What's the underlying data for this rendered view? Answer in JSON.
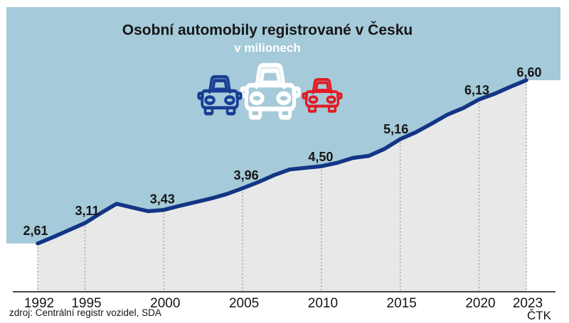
{
  "title": "Osobní automobily registrované v Česku",
  "subtitle": "v milionech",
  "source": "zdroj: Centrální registr vozidel, SDA",
  "agency": "ČTK",
  "colors": {
    "background": "#ffffff",
    "panel_blue": "#a5cad9",
    "area_gray": "#e8e8e8",
    "line_navy": "#123585",
    "car_blue": "#173d94",
    "car_white": "#ffffff",
    "car_red": "#e21b23",
    "grid_dotted": "#a3a3a3",
    "axis": "#2f2f2f",
    "label_text": "#151515"
  },
  "icons": {
    "cars": [
      {
        "name": "car-front-outline-white",
        "color": "#ffffff"
      },
      {
        "name": "car-front-outline-blue",
        "color": "#173d94"
      },
      {
        "name": "car-front-outline-red",
        "color": "#e21b23"
      }
    ]
  },
  "chart_data": {
    "type": "area",
    "title": "Osobní automobily registrované v Česku",
    "subtitle": "v milionech",
    "unit_note": "values in millions of cars",
    "x_range": [
      1992,
      2023
    ],
    "x_ticks": [
      1992,
      1995,
      2000,
      2005,
      2010,
      2015,
      2020,
      2023
    ],
    "y_axis_visible": false,
    "grid": "dotted vertical lines at labeled years",
    "legend_position": "none",
    "labeled_points": [
      {
        "year": 1992,
        "value": 2.61,
        "label": "2,61"
      },
      {
        "year": 1995,
        "value": 3.11,
        "label": "3,11"
      },
      {
        "year": 2000,
        "value": 3.43,
        "label": "3,43"
      },
      {
        "year": 2005,
        "value": 3.96,
        "label": "3,96"
      },
      {
        "year": 2010,
        "value": 4.5,
        "label": "4,50"
      },
      {
        "year": 2015,
        "value": 5.16,
        "label": "5,16"
      },
      {
        "year": 2020,
        "value": 6.13,
        "label": "6,13"
      },
      {
        "year": 2023,
        "value": 6.6,
        "label": "6,60"
      }
    ],
    "line_points": [
      [
        1992,
        2.61
      ],
      [
        1993,
        2.77
      ],
      [
        1994,
        2.94
      ],
      [
        1995,
        3.11
      ],
      [
        1996,
        3.35
      ],
      [
        1997,
        3.58
      ],
      [
        1998,
        3.49
      ],
      [
        1999,
        3.4
      ],
      [
        2000,
        3.43
      ],
      [
        2001,
        3.53
      ],
      [
        2002,
        3.62
      ],
      [
        2003,
        3.71
      ],
      [
        2004,
        3.82
      ],
      [
        2005,
        3.96
      ],
      [
        2006,
        4.11
      ],
      [
        2007,
        4.28
      ],
      [
        2008,
        4.42
      ],
      [
        2009,
        4.46
      ],
      [
        2010,
        4.5
      ],
      [
        2011,
        4.58
      ],
      [
        2012,
        4.7
      ],
      [
        2013,
        4.75
      ],
      [
        2014,
        4.92
      ],
      [
        2015,
        5.16
      ],
      [
        2016,
        5.33
      ],
      [
        2017,
        5.54
      ],
      [
        2018,
        5.76
      ],
      [
        2019,
        5.92
      ],
      [
        2020,
        6.13
      ],
      [
        2021,
        6.27
      ],
      [
        2022,
        6.44
      ],
      [
        2023,
        6.6
      ]
    ]
  }
}
